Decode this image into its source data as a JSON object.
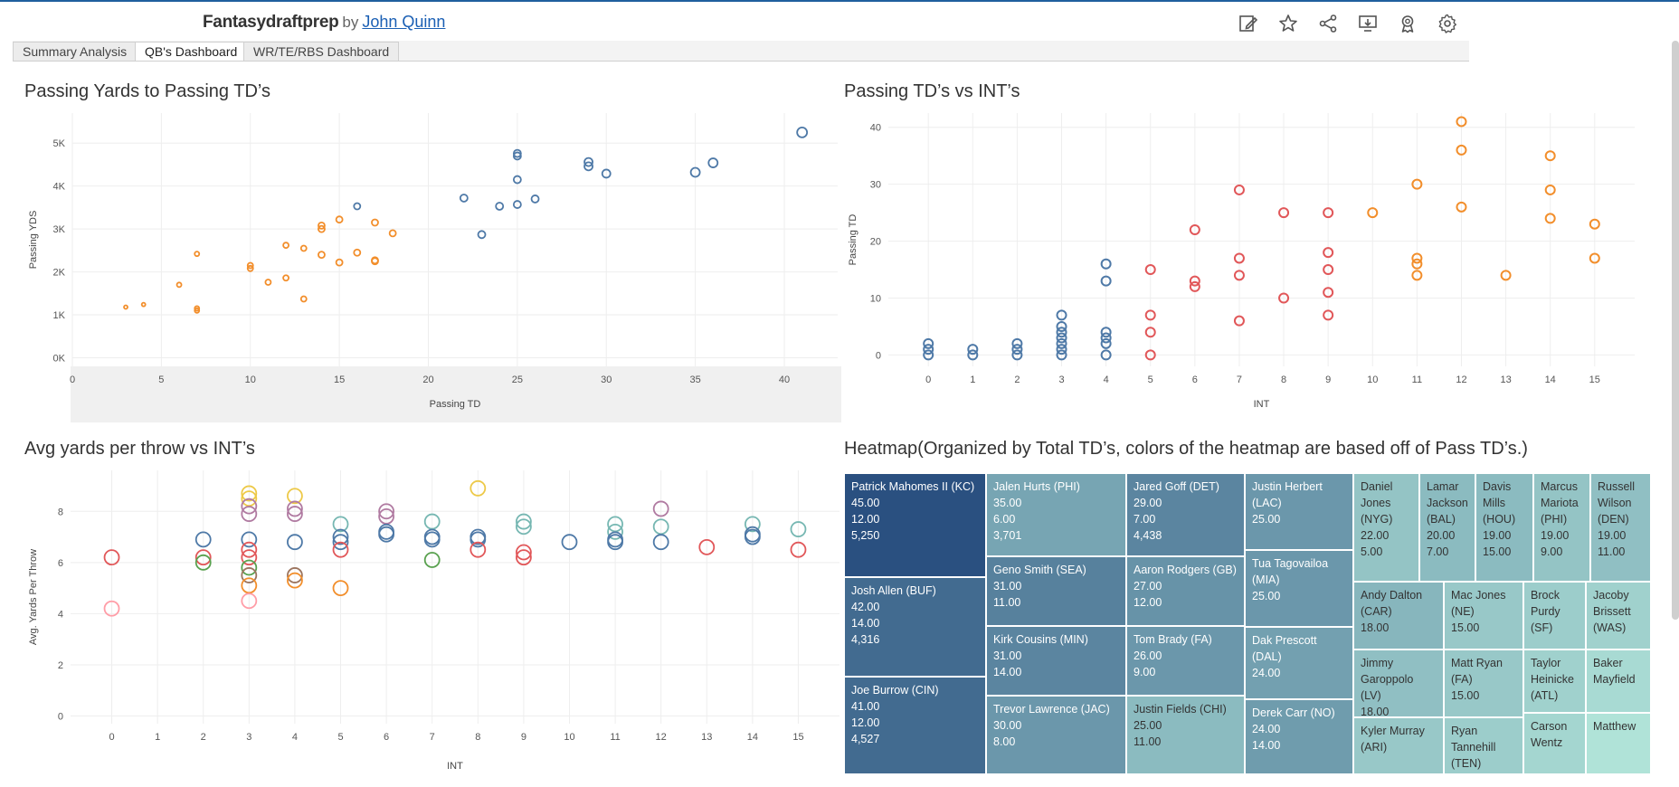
{
  "header": {
    "brand": "Fantasydraftprep",
    "by": "by",
    "author": "John Quinn",
    "icons": [
      "edit-icon",
      "star-icon",
      "share-icon",
      "download-icon",
      "badge-icon",
      "settings-icon"
    ]
  },
  "tabs": [
    {
      "label": "Summary Analysis",
      "active": false
    },
    {
      "label": "QB's Dashboard",
      "active": true
    },
    {
      "label": "WR/TE/RBS Dashboard",
      "active": false
    }
  ],
  "chart_data": [
    {
      "type": "scatter",
      "title": "Passing Yards to Passing TD’s",
      "xlabel": "Passing TD",
      "ylabel": "Passing YDS",
      "xlim": [
        0,
        43
      ],
      "ylim": [
        -200,
        5700
      ],
      "xticks": [
        0,
        5,
        10,
        15,
        20,
        25,
        30,
        35,
        40
      ],
      "yticks": [
        0,
        1000,
        2000,
        3000,
        4000,
        5000
      ],
      "ytick_labels": [
        "0K",
        "1K",
        "2K",
        "3K",
        "4K",
        "5K"
      ],
      "colors": {
        "high": "#4e79a7",
        "low": "#f28e2b"
      },
      "points": [
        {
          "x": 3,
          "y": 1180,
          "g": "low",
          "r": 2
        },
        {
          "x": 4,
          "y": 1240,
          "g": "low",
          "r": 2
        },
        {
          "x": 6,
          "y": 1700,
          "g": "low",
          "r": 2.5
        },
        {
          "x": 7,
          "y": 1150,
          "g": "low",
          "r": 2.5
        },
        {
          "x": 7,
          "y": 1100,
          "g": "low",
          "r": 2.5
        },
        {
          "x": 7,
          "y": 2420,
          "g": "low",
          "r": 2.5
        },
        {
          "x": 10,
          "y": 2150,
          "g": "low",
          "r": 3
        },
        {
          "x": 10,
          "y": 2080,
          "g": "low",
          "r": 3
        },
        {
          "x": 11,
          "y": 1760,
          "g": "low",
          "r": 3
        },
        {
          "x": 12,
          "y": 1860,
          "g": "low",
          "r": 3
        },
        {
          "x": 12,
          "y": 2620,
          "g": "low",
          "r": 3
        },
        {
          "x": 13,
          "y": 2550,
          "g": "low",
          "r": 3
        },
        {
          "x": 13,
          "y": 1370,
          "g": "low",
          "r": 3
        },
        {
          "x": 14,
          "y": 3000,
          "g": "low",
          "r": 3.5
        },
        {
          "x": 14,
          "y": 3080,
          "g": "low",
          "r": 3.5
        },
        {
          "x": 14,
          "y": 2400,
          "g": "low",
          "r": 3.5
        },
        {
          "x": 15,
          "y": 3220,
          "g": "low",
          "r": 3.5
        },
        {
          "x": 15,
          "y": 2220,
          "g": "low",
          "r": 3.5
        },
        {
          "x": 16,
          "y": 2450,
          "g": "low",
          "r": 3.5
        },
        {
          "x": 17,
          "y": 3150,
          "g": "low",
          "r": 3.5
        },
        {
          "x": 17,
          "y": 2250,
          "g": "low",
          "r": 3.5
        },
        {
          "x": 17,
          "y": 2270,
          "g": "low",
          "r": 3.5
        },
        {
          "x": 18,
          "y": 2900,
          "g": "low",
          "r": 3.5
        },
        {
          "x": 16,
          "y": 3530,
          "g": "high",
          "r": 3.5
        },
        {
          "x": 22,
          "y": 3720,
          "g": "high",
          "r": 4
        },
        {
          "x": 23,
          "y": 2870,
          "g": "high",
          "r": 4
        },
        {
          "x": 24,
          "y": 3530,
          "g": "high",
          "r": 4
        },
        {
          "x": 25,
          "y": 3570,
          "g": "high",
          "r": 4
        },
        {
          "x": 25,
          "y": 4150,
          "g": "high",
          "r": 4
        },
        {
          "x": 25,
          "y": 4700,
          "g": "high",
          "r": 4
        },
        {
          "x": 25,
          "y": 4760,
          "g": "high",
          "r": 4
        },
        {
          "x": 26,
          "y": 3700,
          "g": "high",
          "r": 4
        },
        {
          "x": 29,
          "y": 4560,
          "g": "high",
          "r": 4.5
        },
        {
          "x": 29,
          "y": 4460,
          "g": "high",
          "r": 4.5
        },
        {
          "x": 30,
          "y": 4290,
          "g": "high",
          "r": 4.5
        },
        {
          "x": 35,
          "y": 4320,
          "g": "high",
          "r": 5
        },
        {
          "x": 36,
          "y": 4540,
          "g": "high",
          "r": 5
        },
        {
          "x": 41,
          "y": 5250,
          "g": "high",
          "r": 5.5
        }
      ]
    },
    {
      "type": "scatter",
      "title": "Passing TD’s vs INT’s",
      "xlabel": "INT",
      "ylabel": "Passing TD",
      "xlim": [
        -0.9,
        15.9
      ],
      "ylim": [
        -2,
        42.5
      ],
      "xticks": [
        0,
        1,
        2,
        3,
        4,
        5,
        6,
        7,
        8,
        9,
        10,
        11,
        12,
        13,
        14,
        15
      ],
      "yticks": [
        0,
        10,
        20,
        30,
        40
      ],
      "colors": {
        "low": "#4e79a7",
        "mid": "#e15759",
        "high": "#f28e2b"
      },
      "points": [
        {
          "x": 0,
          "y": 0,
          "g": "low"
        },
        {
          "x": 0,
          "y": 1,
          "g": "low"
        },
        {
          "x": 0,
          "y": 2,
          "g": "low"
        },
        {
          "x": 1,
          "y": 0,
          "g": "low"
        },
        {
          "x": 1,
          "y": 1,
          "g": "low"
        },
        {
          "x": 2,
          "y": 0,
          "g": "low"
        },
        {
          "x": 2,
          "y": 1,
          "g": "low"
        },
        {
          "x": 2,
          "y": 2,
          "g": "low"
        },
        {
          "x": 3,
          "y": 0,
          "g": "low"
        },
        {
          "x": 3,
          "y": 1,
          "g": "low"
        },
        {
          "x": 3,
          "y": 2,
          "g": "low"
        },
        {
          "x": 3,
          "y": 3,
          "g": "low"
        },
        {
          "x": 3,
          "y": 4,
          "g": "low"
        },
        {
          "x": 3,
          "y": 5,
          "g": "low"
        },
        {
          "x": 3,
          "y": 7,
          "g": "low"
        },
        {
          "x": 4,
          "y": 0,
          "g": "low"
        },
        {
          "x": 4,
          "y": 2,
          "g": "low"
        },
        {
          "x": 4,
          "y": 3,
          "g": "low"
        },
        {
          "x": 4,
          "y": 4,
          "g": "low"
        },
        {
          "x": 4,
          "y": 13,
          "g": "low"
        },
        {
          "x": 4,
          "y": 16,
          "g": "low"
        },
        {
          "x": 5,
          "y": 0,
          "g": "mid"
        },
        {
          "x": 5,
          "y": 4,
          "g": "mid"
        },
        {
          "x": 5,
          "y": 7,
          "g": "mid"
        },
        {
          "x": 5,
          "y": 15,
          "g": "mid"
        },
        {
          "x": 6,
          "y": 12,
          "g": "mid"
        },
        {
          "x": 6,
          "y": 13,
          "g": "mid"
        },
        {
          "x": 6,
          "y": 22,
          "g": "mid"
        },
        {
          "x": 7,
          "y": 6,
          "g": "mid"
        },
        {
          "x": 7,
          "y": 14,
          "g": "mid"
        },
        {
          "x": 7,
          "y": 17,
          "g": "mid"
        },
        {
          "x": 7,
          "y": 29,
          "g": "mid"
        },
        {
          "x": 8,
          "y": 10,
          "g": "mid"
        },
        {
          "x": 8,
          "y": 25,
          "g": "mid"
        },
        {
          "x": 9,
          "y": 7,
          "g": "mid"
        },
        {
          "x": 9,
          "y": 11,
          "g": "mid"
        },
        {
          "x": 9,
          "y": 15,
          "g": "mid"
        },
        {
          "x": 9,
          "y": 18,
          "g": "mid"
        },
        {
          "x": 9,
          "y": 25,
          "g": "mid"
        },
        {
          "x": 10,
          "y": 25,
          "g": "high"
        },
        {
          "x": 11,
          "y": 14,
          "g": "high"
        },
        {
          "x": 11,
          "y": 16,
          "g": "high"
        },
        {
          "x": 11,
          "y": 17,
          "g": "high"
        },
        {
          "x": 11,
          "y": 30,
          "g": "high"
        },
        {
          "x": 12,
          "y": 26,
          "g": "high"
        },
        {
          "x": 12,
          "y": 36,
          "g": "high"
        },
        {
          "x": 12,
          "y": 41,
          "g": "high"
        },
        {
          "x": 13,
          "y": 14,
          "g": "high"
        },
        {
          "x": 14,
          "y": 24,
          "g": "high"
        },
        {
          "x": 14,
          "y": 29,
          "g": "high"
        },
        {
          "x": 14,
          "y": 35,
          "g": "high"
        },
        {
          "x": 15,
          "y": 17,
          "g": "high"
        },
        {
          "x": 15,
          "y": 23,
          "g": "high"
        }
      ]
    },
    {
      "type": "scatter",
      "title": "Avg yards per throw vs INT’s",
      "xlabel": "INT",
      "ylabel": "Avg. Yards Per Throw",
      "xlim": [
        -0.9,
        15.9
      ],
      "ylim": [
        -0.3,
        9.6
      ],
      "xticks": [
        0,
        1,
        2,
        3,
        4,
        5,
        6,
        7,
        8,
        9,
        10,
        11,
        12,
        13,
        14,
        15
      ],
      "yticks": [
        0,
        2,
        4,
        6,
        8
      ],
      "points": [
        {
          "x": 0,
          "y": 6.2,
          "c": "#e15759"
        },
        {
          "x": 0,
          "y": 4.2,
          "c": "#ff9da7"
        },
        {
          "x": 2,
          "y": 6.9,
          "c": "#4e79a7"
        },
        {
          "x": 2,
          "y": 6.2,
          "c": "#e15759"
        },
        {
          "x": 2,
          "y": 6.0,
          "c": "#59a14f"
        },
        {
          "x": 3,
          "y": 8.7,
          "c": "#edc948"
        },
        {
          "x": 3,
          "y": 8.5,
          "c": "#edc948"
        },
        {
          "x": 3,
          "y": 8.2,
          "c": "#b07aa1"
        },
        {
          "x": 3,
          "y": 7.9,
          "c": "#b07aa1"
        },
        {
          "x": 3,
          "y": 6.9,
          "c": "#4e79a7"
        },
        {
          "x": 3,
          "y": 6.5,
          "c": "#e15759"
        },
        {
          "x": 3,
          "y": 6.2,
          "c": "#e15759"
        },
        {
          "x": 3,
          "y": 5.8,
          "c": "#59a14f"
        },
        {
          "x": 3,
          "y": 5.5,
          "c": "#9c755f"
        },
        {
          "x": 3,
          "y": 5.1,
          "c": "#f28e2b"
        },
        {
          "x": 3,
          "y": 4.5,
          "c": "#ff9da7"
        },
        {
          "x": 4,
          "y": 8.6,
          "c": "#edc948"
        },
        {
          "x": 4,
          "y": 8.1,
          "c": "#b07aa1"
        },
        {
          "x": 4,
          "y": 7.9,
          "c": "#b07aa1"
        },
        {
          "x": 4,
          "y": 6.8,
          "c": "#4e79a7"
        },
        {
          "x": 4,
          "y": 5.5,
          "c": "#9c755f"
        },
        {
          "x": 4,
          "y": 5.3,
          "c": "#f28e2b"
        },
        {
          "x": 5,
          "y": 7.5,
          "c": "#76b7b2"
        },
        {
          "x": 5,
          "y": 7.0,
          "c": "#4e79a7"
        },
        {
          "x": 5,
          "y": 6.8,
          "c": "#4e79a7"
        },
        {
          "x": 5,
          "y": 6.5,
          "c": "#e15759"
        },
        {
          "x": 5,
          "y": 5.0,
          "c": "#f28e2b"
        },
        {
          "x": 6,
          "y": 8.0,
          "c": "#b07aa1"
        },
        {
          "x": 6,
          "y": 7.8,
          "c": "#b07aa1"
        },
        {
          "x": 6,
          "y": 7.2,
          "c": "#4e79a7"
        },
        {
          "x": 6,
          "y": 7.1,
          "c": "#4e79a7"
        },
        {
          "x": 7,
          "y": 7.6,
          "c": "#76b7b2"
        },
        {
          "x": 7,
          "y": 7.0,
          "c": "#4e79a7"
        },
        {
          "x": 7,
          "y": 6.9,
          "c": "#4e79a7"
        },
        {
          "x": 7,
          "y": 6.1,
          "c": "#59a14f"
        },
        {
          "x": 8,
          "y": 8.9,
          "c": "#edc948"
        },
        {
          "x": 8,
          "y": 7.0,
          "c": "#4e79a7"
        },
        {
          "x": 8,
          "y": 6.9,
          "c": "#4e79a7"
        },
        {
          "x": 8,
          "y": 6.5,
          "c": "#e15759"
        },
        {
          "x": 9,
          "y": 7.6,
          "c": "#76b7b2"
        },
        {
          "x": 9,
          "y": 7.4,
          "c": "#76b7b2"
        },
        {
          "x": 9,
          "y": 6.4,
          "c": "#e15759"
        },
        {
          "x": 9,
          "y": 6.2,
          "c": "#e15759"
        },
        {
          "x": 10,
          "y": 6.8,
          "c": "#4e79a7"
        },
        {
          "x": 11,
          "y": 7.5,
          "c": "#76b7b2"
        },
        {
          "x": 11,
          "y": 7.2,
          "c": "#76b7b2"
        },
        {
          "x": 11,
          "y": 6.9,
          "c": "#4e79a7"
        },
        {
          "x": 11,
          "y": 6.8,
          "c": "#4e79a7"
        },
        {
          "x": 12,
          "y": 8.1,
          "c": "#b07aa1"
        },
        {
          "x": 12,
          "y": 7.4,
          "c": "#76b7b2"
        },
        {
          "x": 12,
          "y": 6.8,
          "c": "#4e79a7"
        },
        {
          "x": 13,
          "y": 6.6,
          "c": "#e15759"
        },
        {
          "x": 14,
          "y": 7.5,
          "c": "#76b7b2"
        },
        {
          "x": 14,
          "y": 7.1,
          "c": "#4e79a7"
        },
        {
          "x": 14,
          "y": 7.0,
          "c": "#4e79a7"
        },
        {
          "x": 15,
          "y": 7.3,
          "c": "#76b7b2"
        },
        {
          "x": 15,
          "y": 6.5,
          "c": "#e15759"
        }
      ]
    },
    {
      "type": "heatmap",
      "title": "Heatmap(Organized by Total TD’s, colors of the heatmap are based off of Pass TD’s.)",
      "cells": [
        {
          "lines": [
            "Patrick Mahomes II (KC)",
            "45.00",
            "12.00",
            "5,250"
          ],
          "pass_td": 41
        },
        {
          "lines": [
            "Josh Allen (BUF)",
            "42.00",
            "14.00",
            "4,316"
          ],
          "pass_td": 35
        },
        {
          "lines": [
            "Joe Burrow (CIN)",
            "41.00",
            "12.00",
            "4,527"
          ],
          "pass_td": 35
        },
        {
          "lines": [
            "Jalen Hurts (PHI)",
            "35.00",
            "6.00",
            "3,701"
          ],
          "pass_td": 22
        },
        {
          "lines": [
            "Geno Smith (SEA)",
            "31.00",
            "11.00"
          ],
          "pass_td": 30
        },
        {
          "lines": [
            "Kirk Cousins (MIN)",
            "31.00",
            "14.00"
          ],
          "pass_td": 29
        },
        {
          "lines": [
            "Trevor Lawrence (JAC)",
            "30.00",
            "8.00"
          ],
          "pass_td": 25
        },
        {
          "lines": [
            "Jared Goff (DET)",
            "29.00",
            "7.00",
            "4,438"
          ],
          "pass_td": 29
        },
        {
          "lines": [
            "Aaron Rodgers (GB)",
            "27.00",
            "12.00"
          ],
          "pass_td": 26
        },
        {
          "lines": [
            "Tom Brady (FA)",
            "26.00",
            "9.00"
          ],
          "pass_td": 25
        },
        {
          "lines": [
            "Justin Fields (CHI)",
            "25.00",
            "11.00"
          ],
          "pass_td": 17
        },
        {
          "lines": [
            "Justin Herbert (LAC)",
            "25.00"
          ],
          "pass_td": 25
        },
        {
          "lines": [
            "Tua Tagovailoa (MIA)",
            "25.00"
          ],
          "pass_td": 25
        },
        {
          "lines": [
            "Dak Prescott (DAL)",
            "24.00"
          ],
          "pass_td": 23
        },
        {
          "lines": [
            "Derek Carr (NO)",
            "24.00",
            "14.00"
          ],
          "pass_td": 24
        },
        {
          "lines": [
            "Daniel Jones (NYG)",
            "22.00",
            "5.00"
          ],
          "pass_td": 15
        },
        {
          "lines": [
            "Lamar Jackson (BAL)",
            "20.00",
            "7.00"
          ],
          "pass_td": 17
        },
        {
          "lines": [
            "Davis Mills (HOU)",
            "19.00",
            "15.00"
          ],
          "pass_td": 17
        },
        {
          "lines": [
            "Marcus Mariota (PHI)",
            "19.00",
            "9.00"
          ],
          "pass_td": 15
        },
        {
          "lines": [
            "Russell Wilson (DEN)",
            "19.00",
            "11.00"
          ],
          "pass_td": 16
        },
        {
          "lines": [
            "Andy Dalton (CAR)",
            "18.00"
          ],
          "pass_td": 18
        },
        {
          "lines": [
            "Mac Jones (NE)",
            "15.00"
          ],
          "pass_td": 14
        },
        {
          "lines": [
            "Brock Purdy (SF)"
          ],
          "pass_td": 13
        },
        {
          "lines": [
            "Jacoby Brissett (WAS)"
          ],
          "pass_td": 12
        },
        {
          "lines": [
            "Jimmy Garoppolo (LV)",
            "18.00"
          ],
          "pass_td": 16
        },
        {
          "lines": [
            "Matt Ryan (FA)",
            "15.00"
          ],
          "pass_td": 14
        },
        {
          "lines": [
            "Taylor Heinicke (ATL)"
          ],
          "pass_td": 12
        },
        {
          "lines": [
            "Baker Mayfield"
          ],
          "pass_td": 10
        },
        {
          "lines": [
            "Kyler Murray (ARI)"
          ],
          "pass_td": 14
        },
        {
          "lines": [
            "Ryan Tannehill (TEN)"
          ],
          "pass_td": 13
        },
        {
          "lines": [
            "Carson Wentz"
          ],
          "pass_td": 11
        },
        {
          "lines": [
            "Matthew"
          ],
          "pass_td": 8
        }
      ]
    }
  ]
}
